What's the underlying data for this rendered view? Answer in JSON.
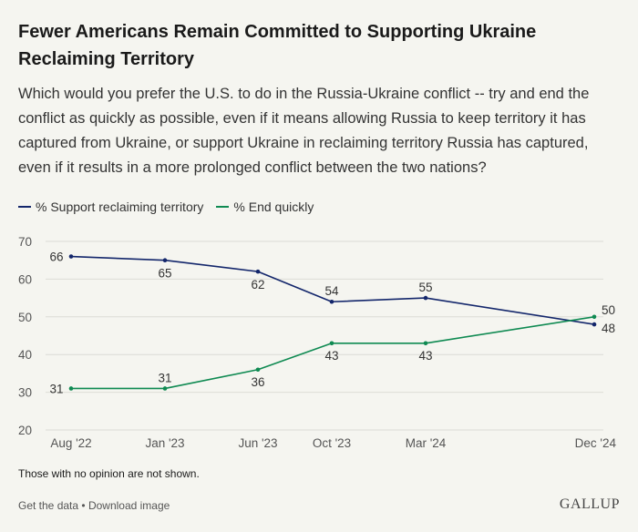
{
  "title": "Fewer Americans Remain Committed to Supporting Ukraine Reclaiming Territory",
  "subtitle": "Which would you prefer the U.S. to do in the Russia-Ukraine conflict -- try and end the conflict as quickly as possible, even if it means allowing Russia to keep territory it has captured from Ukraine, or support Ukraine in reclaiming territory Russia has captured, even if it results in a more prolonged conflict between the two nations?",
  "footnote": "Those with no opinion are not shown.",
  "links": {
    "get_data": "Get the data",
    "separator": "•",
    "download": "Download image"
  },
  "brand": "GALLUP",
  "colors": {
    "support": "#13266b",
    "end": "#0f8a52",
    "grid": "#dcdcd6",
    "axis_text": "#555555",
    "label_text": "#333333"
  },
  "chart_data": {
    "type": "line",
    "x": [
      "Aug '22",
      "Jan '23",
      "Jun '23",
      "Oct '23",
      "Mar '24",
      "Dec '24"
    ],
    "x_dates": [
      "2022-08",
      "2023-01",
      "2023-06",
      "2023-10",
      "2024-03",
      "2024-12"
    ],
    "yticks": [
      20,
      30,
      40,
      50,
      60,
      70
    ],
    "ylim": [
      20,
      70
    ],
    "grid": true,
    "legend": "top-left",
    "series": [
      {
        "name": "% Support reclaiming territory",
        "color": "#13266b",
        "values": [
          66,
          65,
          62,
          54,
          55,
          48
        ]
      },
      {
        "name": "% End quickly",
        "color": "#0f8a52",
        "values": [
          31,
          31,
          36,
          43,
          43,
          50
        ]
      }
    ]
  }
}
